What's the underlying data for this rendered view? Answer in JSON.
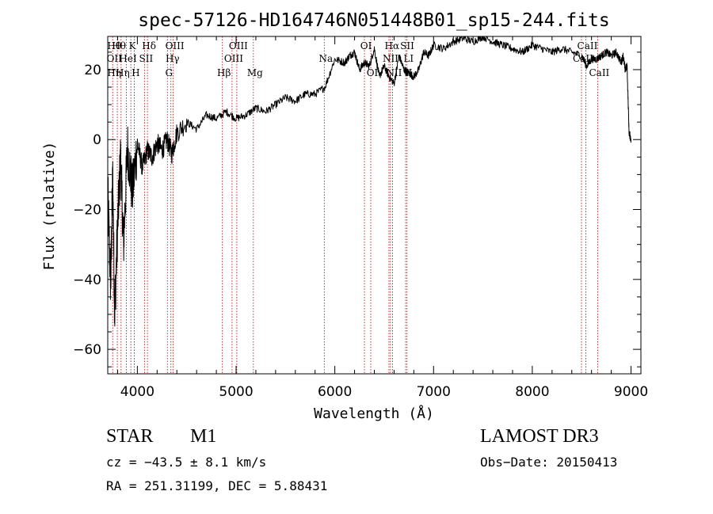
{
  "chart_data": {
    "type": "line",
    "title": "spec-57126-HD164746N051448B01_sp15-244.fits",
    "xlabel": "Wavelength (Å)",
    "ylabel": "Flux (relative)",
    "xlim": [
      3700,
      9100
    ],
    "ylim": [
      -67,
      29.5
    ],
    "xticks": [
      4000,
      5000,
      6000,
      7000,
      8000,
      9000
    ],
    "xtick_labels": [
      "4000",
      "5000",
      "6000",
      "7000",
      "8000",
      "9000"
    ],
    "yticks": [
      -60,
      -40,
      -20,
      0,
      20
    ],
    "ytick_labels": [
      "−60",
      "−40",
      "−20",
      "0",
      "20"
    ],
    "grid": false,
    "series": [
      {
        "name": "flux",
        "color": "#000000",
        "x": [
          3700,
          3730,
          3750,
          3770,
          3800,
          3830,
          3860,
          3900,
          3950,
          4000,
          4050,
          4100,
          4150,
          4200,
          4250,
          4300,
          4350,
          4400,
          4500,
          4600,
          4700,
          4800,
          4900,
          5000,
          5100,
          5200,
          5300,
          5400,
          5500,
          5600,
          5700,
          5800,
          5900,
          6000,
          6100,
          6150,
          6200,
          6250,
          6300,
          6350,
          6400,
          6450,
          6500,
          6550,
          6600,
          6650,
          6700,
          6750,
          6800,
          6850,
          6900,
          6950,
          7000,
          7100,
          7200,
          7300,
          7400,
          7500,
          7600,
          7700,
          7800,
          7900,
          8000,
          8100,
          8200,
          8300,
          8400,
          8500,
          8550,
          8600,
          8650,
          8700,
          8750,
          8800,
          8850,
          8900,
          8920,
          8940,
          8960,
          8980,
          9000
        ],
        "y": [
          -15,
          -42,
          -10,
          -50,
          -25,
          -5,
          -30,
          -2,
          -15,
          -1,
          -8,
          -3,
          -5,
          -1,
          -3,
          0,
          -4,
          2,
          5,
          3,
          7,
          6,
          8,
          6,
          7,
          9,
          8,
          10,
          12,
          11,
          13,
          13,
          15,
          23,
          22,
          24,
          25,
          20,
          22,
          21,
          26,
          18,
          21,
          18,
          16,
          24,
          20,
          19,
          18,
          20,
          25,
          24,
          27,
          26,
          28,
          29,
          28,
          29.5,
          28,
          27,
          26,
          25,
          27,
          26,
          25,
          26,
          25,
          24,
          21,
          23,
          23,
          24,
          25,
          24,
          25,
          22,
          24,
          20,
          21,
          2,
          0
        ]
      }
    ],
    "lines": [
      {
        "wavelength": 3750,
        "label_top": "Hθ",
        "label_mid": "OII",
        "label_bot": "Hη"
      },
      {
        "wavelength": 3797,
        "label_top": "Hθ",
        "label_mid": "",
        "label_bot": ""
      },
      {
        "wavelength": 3835,
        "label_top": "",
        "label_mid": "",
        "label_bot": "Hη"
      },
      {
        "wavelength": 3889,
        "label_top": "",
        "label_mid": "HeI",
        "label_bot": ""
      },
      {
        "wavelength": 3934,
        "label_top": "K",
        "label_mid": "",
        "label_bot": ""
      },
      {
        "wavelength": 3968,
        "label_top": "",
        "label_mid": "",
        "label_bot": "H"
      },
      {
        "wavelength": 4072,
        "label_top": "",
        "label_mid": "SII",
        "label_bot": ""
      },
      {
        "wavelength": 4102,
        "label_top": "Hδ",
        "label_mid": "",
        "label_bot": ""
      },
      {
        "wavelength": 4304,
        "label_top": "",
        "label_mid": "",
        "label_bot": "G"
      },
      {
        "wavelength": 4340,
        "label_top": "",
        "label_mid": "Hγ",
        "label_bot": ""
      },
      {
        "wavelength": 4363,
        "label_top": "OIII",
        "label_mid": "",
        "label_bot": ""
      },
      {
        "wavelength": 4861,
        "label_top": "",
        "label_mid": "",
        "label_bot": "Hβ"
      },
      {
        "wavelength": 4959,
        "label_top": "",
        "label_mid": "OIII",
        "label_bot": ""
      },
      {
        "wavelength": 5007,
        "label_top": "OIII",
        "label_mid": "",
        "label_bot": ""
      },
      {
        "wavelength": 5175,
        "label_top": "",
        "label_mid": "",
        "label_bot": "Mg"
      },
      {
        "wavelength": 5893,
        "label_top": "",
        "label_mid": "Na",
        "label_bot": ""
      },
      {
        "wavelength": 6300,
        "label_top": "OI",
        "label_mid": "",
        "label_bot": ""
      },
      {
        "wavelength": 6364,
        "label_top": "",
        "label_mid": "",
        "label_bot": "OI"
      },
      {
        "wavelength": 6548,
        "label_top": "",
        "label_mid": "NII",
        "label_bot": ""
      },
      {
        "wavelength": 6563,
        "label_top": "Hα",
        "label_mid": "",
        "label_bot": ""
      },
      {
        "wavelength": 6584,
        "label_top": "",
        "label_mid": "",
        "label_bot": "NII"
      },
      {
        "wavelength": 6717,
        "label_top": "SII",
        "label_mid": "",
        "label_bot": ""
      },
      {
        "wavelength": 6731,
        "label_top": "",
        "label_mid": "LI",
        "label_bot": "II"
      },
      {
        "wavelength": 8498,
        "label_top": "",
        "label_mid": "CaII",
        "label_bot": ""
      },
      {
        "wavelength": 8542,
        "label_top": "CaII",
        "label_mid": "",
        "label_bot": ""
      },
      {
        "wavelength": 8662,
        "label_top": "",
        "label_mid": "",
        "label_bot": "CaII"
      }
    ],
    "line_color": "#b00000"
  },
  "info": {
    "object_class": "STAR",
    "subclass": "M1",
    "survey": "LAMOST DR3",
    "cz": "cz = −43.5 ± 8.1 km/s",
    "obs_date": "Obs−Date: 20150413",
    "coords": "RA = 251.31199, DEC =   5.88431"
  }
}
